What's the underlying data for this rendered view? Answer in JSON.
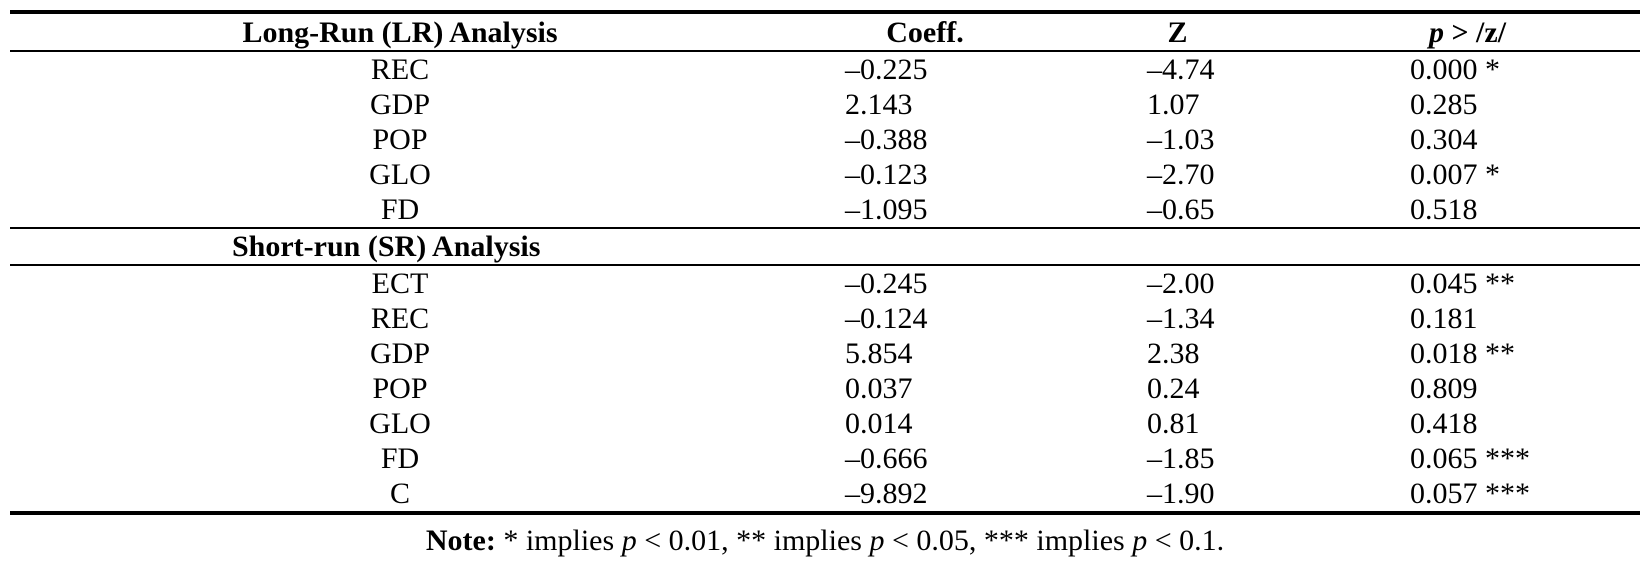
{
  "table": {
    "headers": {
      "col1": "Long-Run (LR) Analysis",
      "col2": "Coeff.",
      "col3": "Z",
      "col4_italic": "p",
      "col4_rest": " > /z/"
    },
    "long_run_rows": [
      {
        "var": "REC",
        "coeff": "–0.225",
        "z": "–4.74",
        "p": "0.000 *"
      },
      {
        "var": "GDP",
        "coeff": "2.143",
        "z": "1.07",
        "p": "0.285"
      },
      {
        "var": "POP",
        "coeff": "–0.388",
        "z": "–1.03",
        "p": "0.304"
      },
      {
        "var": "GLO",
        "coeff": "–0.123",
        "z": "–2.70",
        "p": "0.007 *"
      },
      {
        "var": "FD",
        "coeff": "–1.095",
        "z": "–0.65",
        "p": "0.518"
      }
    ],
    "short_run_title": "Short-run (SR) Analysis",
    "short_run_rows": [
      {
        "var": "ECT",
        "coeff": "–0.245",
        "z": "–2.00",
        "p": "0.045 **"
      },
      {
        "var": "REC",
        "coeff": "–0.124",
        "z": "–1.34",
        "p": "0.181"
      },
      {
        "var": "GDP",
        "coeff": "5.854",
        "z": "2.38",
        "p": "0.018 **"
      },
      {
        "var": "POP",
        "coeff": "0.037",
        "z": "0.24",
        "p": "0.809"
      },
      {
        "var": "GLO",
        "coeff": "0.014",
        "z": "0.81",
        "p": "0.418"
      },
      {
        "var": "FD",
        "coeff": "–0.666",
        "z": "–1.85",
        "p": "0.065 ***"
      },
      {
        "var": "C",
        "coeff": "–9.892",
        "z": "–1.90",
        "p": "0.057 ***"
      }
    ]
  },
  "note": {
    "label": "Note:",
    "part1": " * implies ",
    "p1": "p",
    "part2": " < 0.01, ** implies ",
    "p2": "p",
    "part3": " < 0.05, *** implies ",
    "p3": "p",
    "part4": " < 0.1."
  }
}
